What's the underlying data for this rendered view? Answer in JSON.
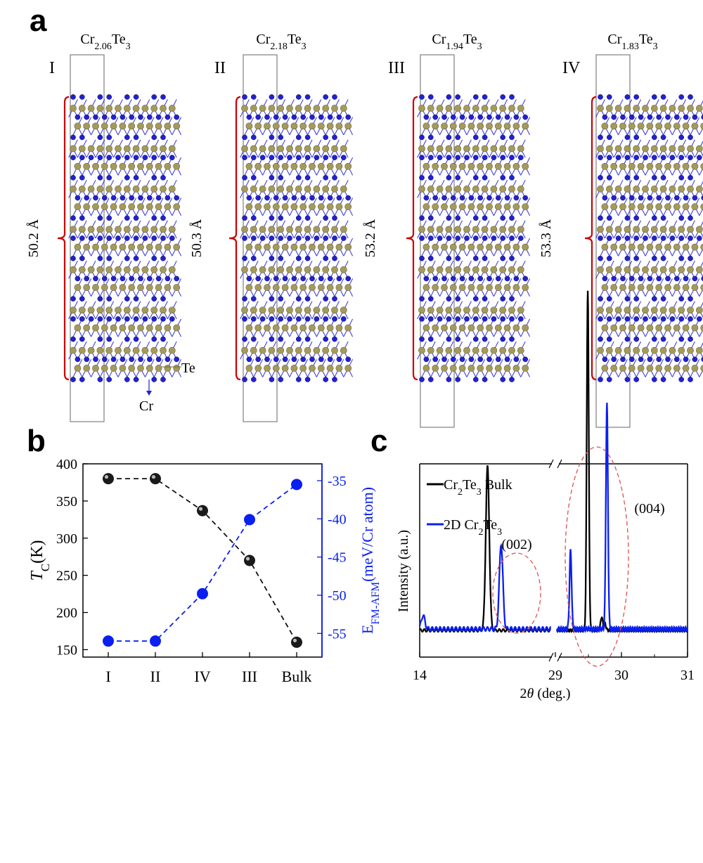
{
  "figure": {
    "panel_labels": [
      "a",
      "b",
      "c"
    ]
  },
  "panel_a": {
    "structures": [
      {
        "roman": "I",
        "formula": {
          "a": "Cr",
          "s1": "2.06",
          "b": "Te",
          "s2": "3"
        },
        "height": "50.2 Å",
        "top_atom": "cr"
      },
      {
        "roman": "II",
        "formula": {
          "a": "Cr",
          "s1": "2.18",
          "b": "Te",
          "s2": "3"
        },
        "height": "50.3 Å",
        "top_atom": "cr"
      },
      {
        "roman": "III",
        "formula": {
          "a": "Cr",
          "s1": "1.94",
          "b": "Te",
          "s2": "3"
        },
        "height": "53.2 Å",
        "top_atom": "te"
      },
      {
        "roman": "IV",
        "formula": {
          "a": "Cr",
          "s1": "1.83",
          "b": "Te",
          "s2": "3"
        },
        "height": "53.3 Å",
        "top_atom": "te"
      }
    ],
    "atom_labels": {
      "te": "Te",
      "cr": "Cr"
    },
    "colors": {
      "cr": "#2222cc",
      "te": "#a49a5e",
      "bracket": "#cc0000",
      "cell": "#888888"
    }
  },
  "chart_data": [
    {
      "type": "scatter",
      "panel": "b",
      "categories": [
        "I",
        "II",
        "IV",
        "III",
        "Bulk"
      ],
      "y_left": {
        "label_main": "T",
        "label_sub": "C",
        "label_unit": "(K)",
        "ylim": [
          140,
          400
        ],
        "ticks": [
          150,
          200,
          250,
          300,
          350,
          400
        ]
      },
      "y_right": {
        "label_main": "E",
        "label_sub": "FM-AFM",
        "label_unit": "(meV/Cr atom)",
        "ylim": [
          -58.1,
          -32.8
        ],
        "ticks": [
          -55,
          -50,
          -45,
          -40,
          -35
        ]
      },
      "series": [
        {
          "axis": "left",
          "values": [
            380,
            380,
            337,
            270,
            160
          ],
          "color": "#111111",
          "line": "dashed"
        },
        {
          "axis": "right",
          "values": [
            -56,
            -56,
            -49.8,
            -40.1,
            -35.5
          ],
          "color": "#0a1ff0",
          "line": "dashed"
        }
      ]
    },
    {
      "type": "line",
      "panel": "c",
      "xlabel_prefix": "2",
      "xlabel_theta": "θ",
      "xlabel_suffix": " (deg.)",
      "ylabel": "Intensity (a.u.)",
      "x_tick_labels": [
        "14",
        "29",
        "30",
        "31"
      ],
      "x_break": true,
      "x_segments": [
        [
          14,
          29
        ],
        [
          29,
          31
        ]
      ],
      "peaks": [
        {
          "label": "(002)",
          "at": 14.6
        },
        {
          "label": "(004)",
          "at": 29.6
        }
      ],
      "legend_placement": "top-left",
      "series": [
        {
          "name_main": "Cr",
          "name_s1": "2",
          "name_mid": "Te",
          "name_s2": "3",
          "name_tail": " Bulk",
          "color": "#000000",
          "peaks": [
            {
              "x": 14.6,
              "height": 0.48
            },
            {
              "x": 29.49,
              "height": 1.0
            },
            {
              "x": 29.7,
              "height": 0.04
            },
            {
              "x": 29.75,
              "height": 0.02
            }
          ]
        },
        {
          "name_main": "2D Cr",
          "name_s1": "2",
          "name_mid": "Te",
          "name_s2": "3",
          "name_tail": "",
          "color": "#0a1ff0",
          "peaks": [
            {
              "x": 14.03,
              "height": 0.04
            },
            {
              "x": 14.72,
              "height": 0.25
            },
            {
              "x": 29.23,
              "height": 0.23
            },
            {
              "x": 29.78,
              "height": 0.66
            }
          ]
        }
      ]
    }
  ]
}
